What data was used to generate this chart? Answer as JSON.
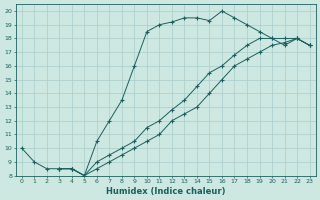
{
  "title": "",
  "xlabel": "Humidex (Indice chaleur)",
  "xlim": [
    -0.5,
    23.5
  ],
  "ylim": [
    8,
    20.5
  ],
  "xticks": [
    0,
    1,
    2,
    3,
    4,
    5,
    6,
    7,
    8,
    9,
    10,
    11,
    12,
    13,
    14,
    15,
    16,
    17,
    18,
    19,
    20,
    21,
    22,
    23
  ],
  "yticks": [
    8,
    9,
    10,
    11,
    12,
    13,
    14,
    15,
    16,
    17,
    18,
    19,
    20
  ],
  "background_color": "#cce8e0",
  "grid_color": "#aacccc",
  "line_color": "#1a6060",
  "curve1_x": [
    0,
    1,
    2,
    3,
    4,
    5,
    6,
    7,
    8,
    9,
    10,
    11,
    12,
    13,
    14,
    15,
    16,
    17,
    18,
    19,
    20,
    21,
    22,
    23
  ],
  "curve1_y": [
    10,
    9,
    8.5,
    8.5,
    8.5,
    8.0,
    10.5,
    12,
    13.5,
    16,
    18.5,
    19,
    19.2,
    19.5,
    19.5,
    19.3,
    20,
    19.5,
    19.0,
    18.5,
    18.0,
    17.5,
    18.0,
    17.5
  ],
  "curve2_x": [
    3,
    4,
    5,
    6,
    7,
    8,
    9,
    10,
    11,
    12,
    13,
    14,
    15,
    16,
    17,
    18,
    19,
    20,
    21,
    22,
    23
  ],
  "curve2_y": [
    8.5,
    8.5,
    8.0,
    8.5,
    9.0,
    9.5,
    10.0,
    10.5,
    11.0,
    12.0,
    12.5,
    13.0,
    14.0,
    15.0,
    16.0,
    16.5,
    17.0,
    17.5,
    17.7,
    18.0,
    17.5
  ],
  "curve3_x": [
    3,
    4,
    5,
    6,
    7,
    8,
    9,
    10,
    11,
    12,
    13,
    14,
    15,
    16,
    17,
    18,
    19,
    20,
    21,
    22,
    23
  ],
  "curve3_y": [
    8.5,
    8.5,
    8.0,
    9.0,
    9.5,
    10.0,
    10.5,
    11.5,
    12.0,
    12.8,
    13.5,
    14.5,
    15.5,
    16.0,
    16.8,
    17.5,
    18.0,
    18.0,
    18.0,
    18.0,
    17.5
  ]
}
